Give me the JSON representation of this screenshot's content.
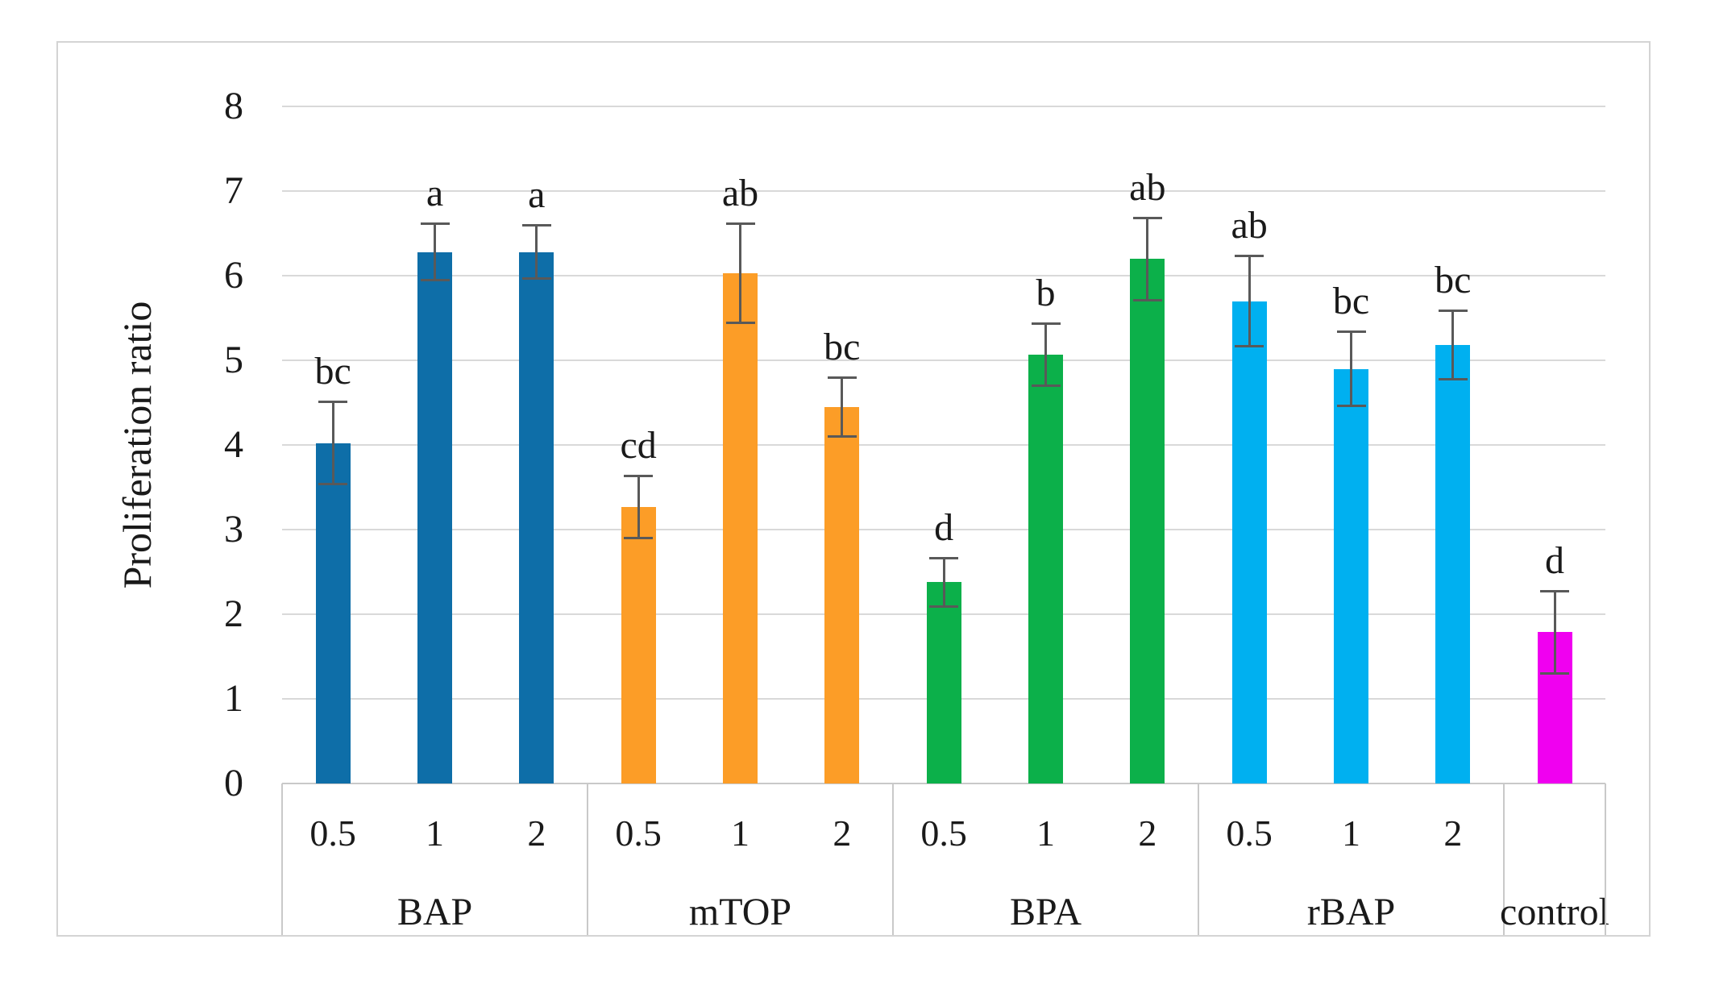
{
  "chart_data": {
    "type": "bar",
    "title": "",
    "xlabel": "",
    "ylabel": "Proliferation ratio",
    "ylim": [
      0,
      8
    ],
    "yticks": [
      0,
      1,
      2,
      3,
      4,
      5,
      6,
      7,
      8
    ],
    "grid": "horizontal",
    "legend_position": "none",
    "error_bars": true,
    "groups": [
      {
        "label": "BAP",
        "color": "#0e6ea8",
        "bars": [
          {
            "dose": "0.5",
            "value": 4.02,
            "error": 0.5,
            "letter": "bc"
          },
          {
            "dose": "1",
            "value": 6.28,
            "error": 0.35,
            "letter": "a"
          },
          {
            "dose": "2",
            "value": 6.28,
            "error": 0.33,
            "letter": "a"
          }
        ]
      },
      {
        "label": "mTOP",
        "color": "#fc9d27",
        "bars": [
          {
            "dose": "0.5",
            "value": 3.27,
            "error": 0.38,
            "letter": "cd"
          },
          {
            "dose": "1",
            "value": 6.03,
            "error": 0.6,
            "letter": "ab"
          },
          {
            "dose": "2",
            "value": 4.45,
            "error": 0.36,
            "letter": "bc"
          }
        ]
      },
      {
        "label": "BPA",
        "color": "#0cb04a",
        "bars": [
          {
            "dose": "0.5",
            "value": 2.38,
            "error": 0.3,
            "letter": "d"
          },
          {
            "dose": "1",
            "value": 5.07,
            "error": 0.38,
            "letter": "b"
          },
          {
            "dose": "2",
            "value": 6.2,
            "error": 0.5,
            "letter": "ab"
          }
        ]
      },
      {
        "label": "rBAP",
        "color": "#00b0f0",
        "bars": [
          {
            "dose": "0.5",
            "value": 5.7,
            "error": 0.55,
            "letter": "ab"
          },
          {
            "dose": "1",
            "value": 4.9,
            "error": 0.45,
            "letter": "bc"
          },
          {
            "dose": "2",
            "value": 5.18,
            "error": 0.42,
            "letter": "bc"
          }
        ]
      },
      {
        "label": "control",
        "color": "#f000f0",
        "bars": [
          {
            "dose": "",
            "value": 1.79,
            "error": 0.5,
            "letter": "d"
          }
        ]
      }
    ]
  },
  "colors": {
    "gridline": "#d9d9d9",
    "axis_table_border": "#c9c9c9",
    "figure_border": "#d4d4d4",
    "error_bar": "#595959",
    "text": "#1a1a1a",
    "background": "#ffffff"
  }
}
